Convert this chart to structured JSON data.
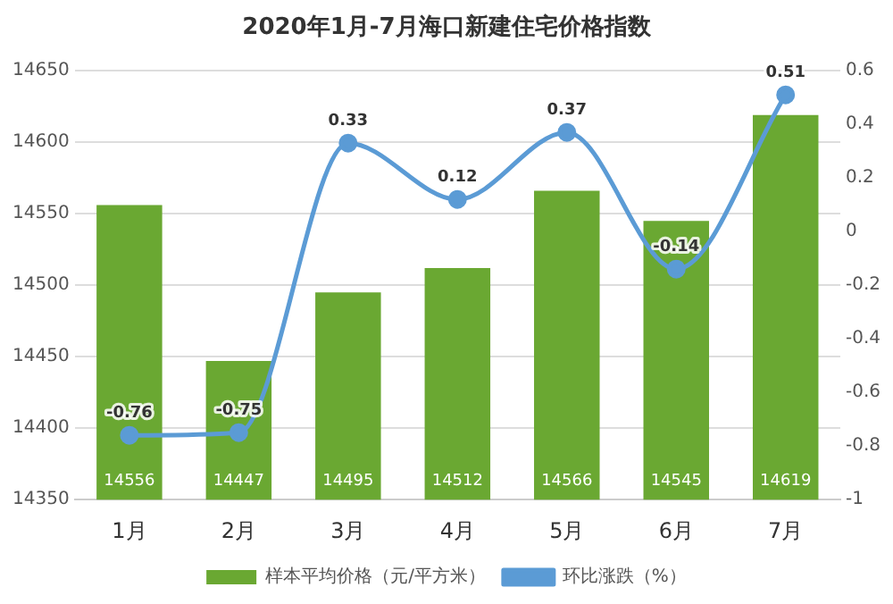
{
  "chart_data": {
    "type": "bar",
    "title": "2020年1月-7月海口新建住宅价格指数",
    "categories": [
      "1月",
      "2月",
      "3月",
      "4月",
      "5月",
      "6月",
      "7月"
    ],
    "series": [
      {
        "name": "样本平均价格（元/平方米）",
        "color": "#6aa832",
        "values": [
          14556,
          14447,
          14495,
          14512,
          14566,
          14545,
          14619
        ]
      },
      {
        "name": "环比涨跌（%）",
        "type": "line",
        "axis": "y2",
        "color": "#5b9bd5",
        "values": [
          -0.76,
          -0.75,
          0.33,
          0.12,
          0.37,
          -0.14,
          0.51
        ]
      }
    ],
    "ylim": [
      14350,
      14650
    ],
    "yticks": [
      14350,
      14400,
      14450,
      14500,
      14550,
      14600,
      14650
    ],
    "y2lim": [
      -1,
      0.6
    ],
    "y2ticks": [
      -1,
      -0.8,
      -0.6,
      -0.4,
      -0.2,
      0,
      0.2,
      0.4,
      0.6
    ],
    "grid": "y",
    "legend": "bottom",
    "marker": "circle",
    "line_style": "solid",
    "data_labels": true
  }
}
